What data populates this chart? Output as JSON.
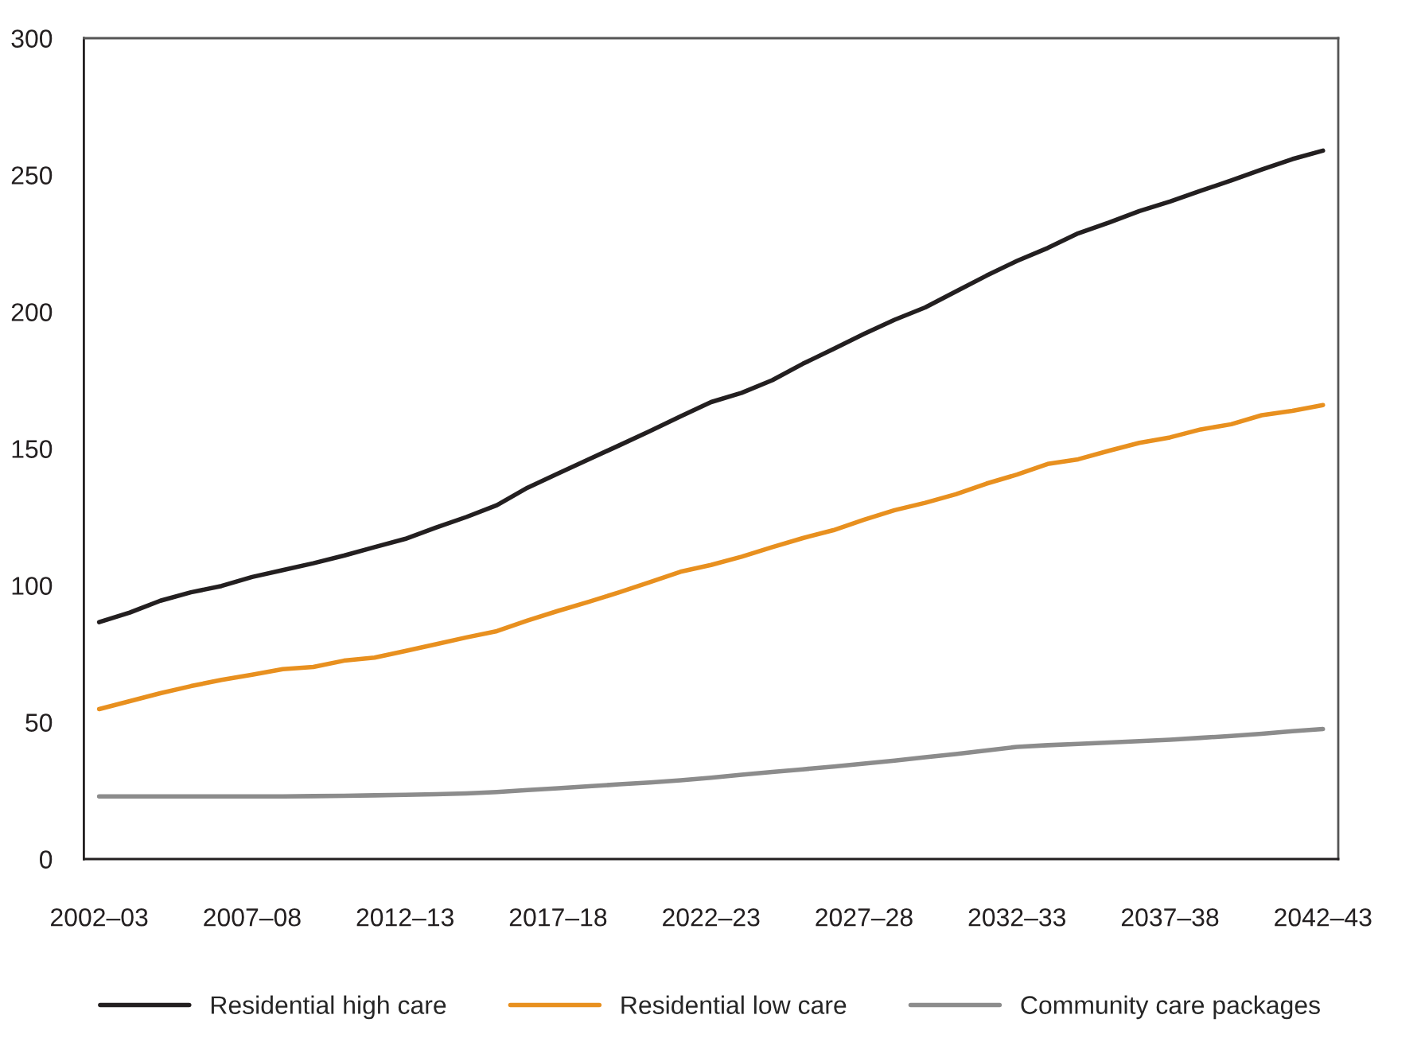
{
  "chart_data": {
    "type": "line",
    "categories": [
      "2002–03",
      null,
      null,
      null,
      null,
      "2007–08",
      null,
      null,
      null,
      null,
      "2012–13",
      null,
      null,
      null,
      null,
      "2017–18",
      null,
      null,
      null,
      null,
      "2022–23",
      null,
      null,
      null,
      null,
      "2027–28",
      null,
      null,
      null,
      null,
      "2032–33",
      null,
      null,
      null,
      null,
      "2037–38",
      null,
      null,
      null,
      null,
      "2042–43"
    ],
    "series": [
      {
        "name": "Residential high care",
        "color": "#231f20",
        "values": [
          86.6,
          90.1,
          94.4,
          97.5,
          99.8,
          103.1,
          105.6,
          108.1,
          110.9,
          114,
          117,
          121.1,
          125,
          129.3,
          135.7,
          140.9,
          146.1,
          151.2,
          156.4,
          161.8,
          167,
          170.4,
          175,
          181,
          186.4,
          191.9,
          197.1,
          201.6,
          207.4,
          213.2,
          218.6,
          223.3,
          228.7,
          232.6,
          236.8,
          240.3,
          244.2,
          248,
          252,
          255.8,
          258.9
        ]
      },
      {
        "name": "Residential low care",
        "color": "#e8901f",
        "values": [
          54.8,
          57.7,
          60.6,
          63.2,
          65.5,
          67.4,
          69.4,
          70.2,
          72.5,
          73.6,
          76,
          78.5,
          81,
          83.3,
          87.2,
          90.7,
          94,
          97.5,
          101.2,
          105,
          107.5,
          110.5,
          114,
          117.3,
          120.2,
          124,
          127.5,
          130.2,
          133.3,
          137.2,
          140.5,
          144.4,
          146.1,
          149.2,
          152.1,
          154.1,
          157,
          158.9,
          162.2,
          163.8,
          165.9
        ]
      },
      {
        "name": "Community care packages",
        "color": "#8c8c8c",
        "values": [
          22.9,
          22.9,
          22.9,
          22.9,
          22.9,
          22.9,
          22.9,
          23.0,
          23.1,
          23.3,
          23.5,
          23.7,
          24.0,
          24.5,
          25.2,
          25.9,
          26.6,
          27.3,
          28.0,
          28.8,
          29.7,
          30.8,
          31.8,
          32.8,
          33.8,
          34.9,
          36.0,
          37.2,
          38.4,
          39.7,
          41.0,
          41.6,
          42.1,
          42.6,
          43.1,
          43.6,
          44.3,
          45.0,
          45.8,
          46.7,
          47.5
        ]
      }
    ],
    "ylim": [
      0,
      300
    ],
    "yticks": [
      0,
      50,
      100,
      150,
      200,
      250,
      300
    ],
    "grid": false,
    "legend": "bottom",
    "marker": "none",
    "line_style": "solid"
  }
}
